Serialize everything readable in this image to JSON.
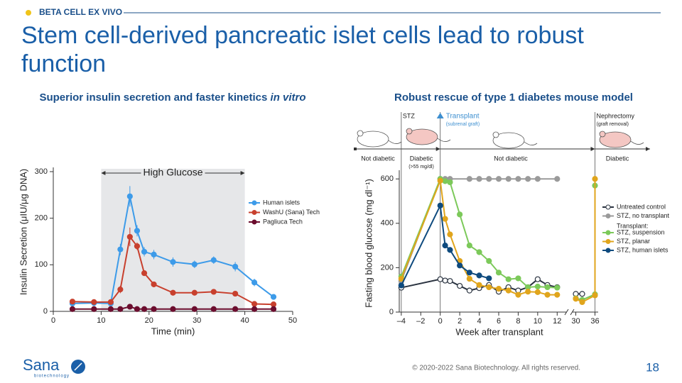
{
  "header": {
    "tag": "BETA CELL EX VIVO",
    "title": "Stem cell-derived pancreatic islet cells lead to robust function"
  },
  "chart_data": [
    {
      "type": "line",
      "title": "Superior insulin secretion and faster kinetics",
      "title_italic": "in vitro",
      "x_label": "Time (min)",
      "y_label": "Insulin Secretion (μIU/μg DNA)",
      "x": [
        4,
        8.5,
        12,
        14,
        16,
        17.5,
        19,
        21,
        25,
        29.5,
        33.5,
        38,
        42,
        46
      ],
      "series": [
        {
          "name": "Human islets",
          "color": "#3d9be9",
          "values": [
            17,
            18,
            17,
            133,
            247,
            173,
            128,
            122,
            106,
            101,
            110,
            96,
            62,
            31
          ],
          "errors": [
            4,
            3,
            3,
            12,
            22,
            12,
            10,
            10,
            10,
            8,
            8,
            10,
            8,
            3
          ]
        },
        {
          "name": "WashU (Sana) Tech",
          "color": "#c8402e",
          "values": [
            21,
            20,
            20,
            47,
            160,
            140,
            82,
            58,
            40,
            40,
            42,
            38,
            16,
            15
          ],
          "errors": [
            3,
            3,
            3,
            8,
            20,
            8,
            5,
            6,
            5,
            5,
            5,
            5,
            3,
            2
          ]
        },
        {
          "name": "Pagliuca Tech",
          "color": "#6b0d2e",
          "values": [
            5,
            5,
            5,
            5,
            10,
            5,
            5,
            5,
            5,
            5,
            5,
            5,
            5,
            5
          ]
        }
      ],
      "highlight": {
        "label": "High Glucose",
        "range": [
          10,
          40
        ]
      },
      "xlim": [
        0,
        50
      ],
      "xticks": [
        0,
        10,
        20,
        30,
        40,
        50
      ],
      "ylim": [
        0,
        300
      ],
      "yticks": [
        0,
        100,
        200,
        300
      ],
      "legend": "right"
    },
    {
      "type": "line",
      "title": "Robust rescue of type 1 diabetes mouse model",
      "x_label": "Week after transplant",
      "y_label": "Fasting blood glucose (mg dl⁻¹)",
      "series": [
        {
          "name": "Untreated control",
          "color": "#2a3340",
          "hollow": true,
          "x": [
            -4,
            0,
            0.5,
            1,
            2,
            3,
            4,
            5,
            6,
            7,
            8,
            9,
            10,
            11,
            12,
            null,
            30,
            32
          ],
          "values": [
            110,
            148,
            142,
            140,
            118,
            97,
            108,
            122,
            92,
            112,
            97,
            112,
            148,
            122,
            112,
            null,
            82,
            82
          ]
        },
        {
          "name": "STZ, no transplant",
          "color": "#9a9a9a",
          "x": [
            -4,
            0,
            0.5,
            1,
            3,
            4,
            5,
            6,
            7,
            8,
            9,
            10,
            12
          ],
          "values": [
            140,
            600,
            600,
            600,
            600,
            600,
            600,
            600,
            600,
            600,
            600,
            600,
            600
          ]
        },
        {
          "name": "STZ, suspension",
          "color": "#7cc95a",
          "x": [
            -4,
            0,
            0.5,
            1,
            2,
            3,
            4,
            5,
            6,
            7,
            8,
            9,
            10,
            11,
            12,
            null,
            30,
            32,
            36,
            36
          ],
          "values": [
            160,
            600,
            590,
            585,
            440,
            300,
            270,
            230,
            178,
            148,
            152,
            112,
            115,
            112,
            110,
            null,
            62,
            55,
            80,
            570
          ]
        },
        {
          "name": "STZ, planar",
          "color": "#e0a51c",
          "x": [
            -4,
            0,
            0.5,
            1,
            2,
            3,
            4,
            5,
            6,
            7,
            8,
            9,
            10,
            11,
            12,
            null,
            30,
            32,
            36,
            36
          ],
          "values": [
            150,
            592,
            420,
            350,
            230,
            150,
            122,
            112,
            105,
            97,
            78,
            92,
            90,
            78,
            78,
            null,
            60,
            45,
            75,
            600
          ]
        },
        {
          "name": "STZ, human islets",
          "color": "#0e4a7e",
          "x": [
            -4,
            0,
            0.5,
            1,
            2,
            3,
            4,
            5
          ],
          "values": [
            120,
            480,
            300,
            280,
            210,
            178,
            165,
            152
          ]
        }
      ],
      "legend_heading": "Transplant:",
      "events": [
        {
          "x": -4,
          "label": "STZ"
        },
        {
          "x": 0,
          "label": "Transplant",
          "note": "(subrenal graft)"
        },
        {
          "x": 36,
          "label": "Nephrectomy",
          "note": "(graft removal)"
        }
      ],
      "phases": [
        {
          "label": "Not diabetic"
        },
        {
          "label": "Diabetic",
          "note": "(>55 mg/dl)"
        },
        {
          "label": "Not diabetic"
        },
        {
          "label": "Diabetic"
        }
      ],
      "xlim": [
        -4.5,
        37
      ],
      "xbreak": [
        13,
        29
      ],
      "xticks": [
        {
          "value": -4,
          "label": "–4"
        },
        {
          "value": -2,
          "label": "–2"
        },
        0,
        2,
        4,
        6,
        8,
        10,
        12,
        30,
        36
      ],
      "ylim": [
        0,
        620
      ],
      "yticks": [
        0,
        200,
        400,
        600
      ],
      "legend": "right"
    }
  ],
  "footer": {
    "logo": "Sana",
    "logo_sub": "biotechnology",
    "copyright": "© 2020-2022 Sana Biotechnology. All rights reserved.",
    "page": "18"
  }
}
